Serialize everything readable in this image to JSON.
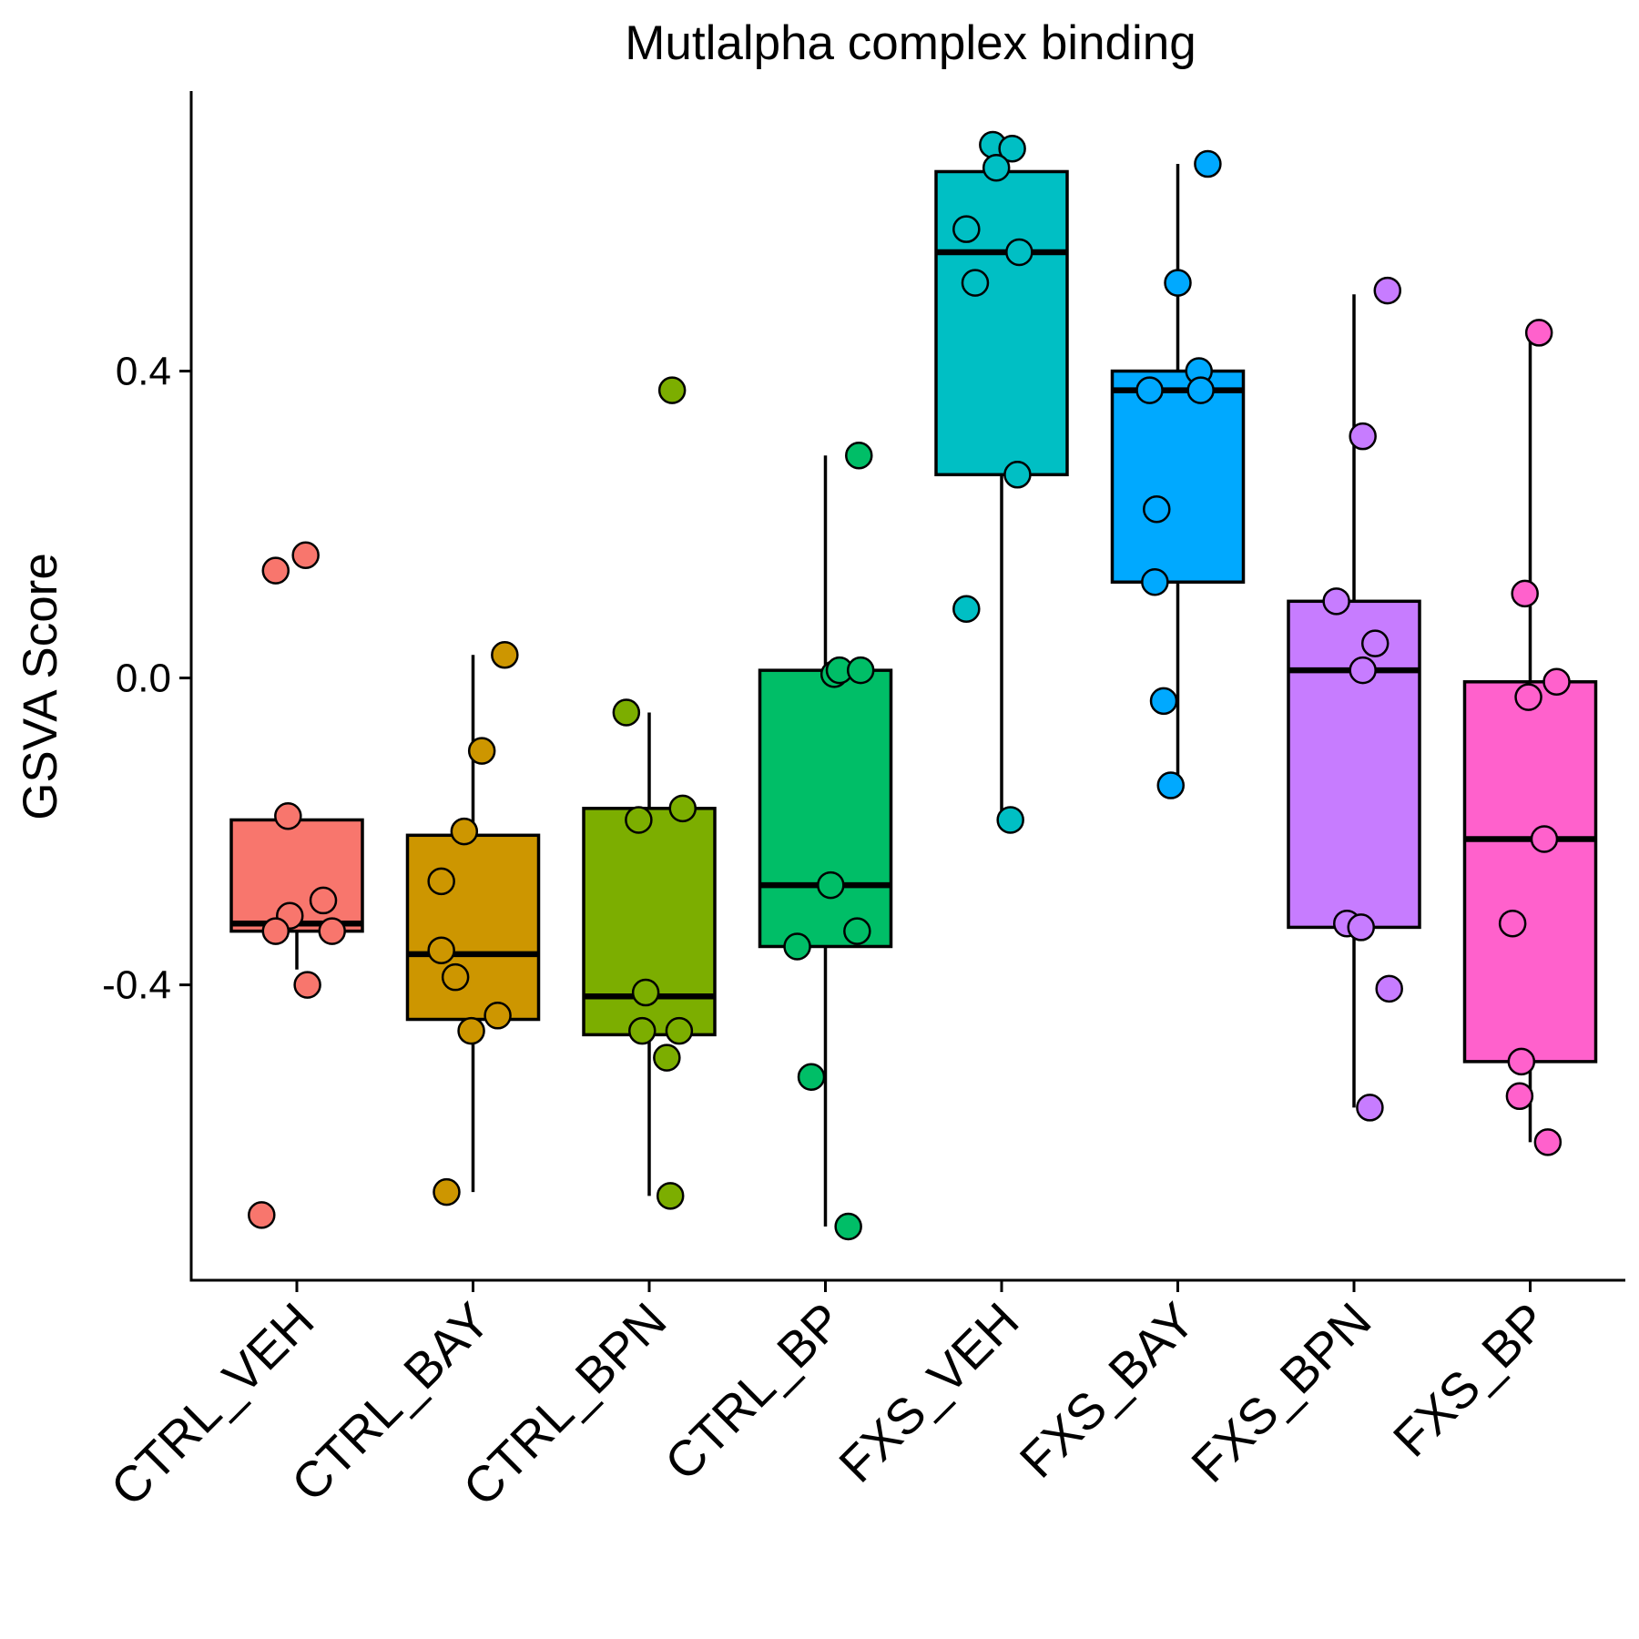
{
  "chart_data": {
    "type": "box",
    "title": "Mutlalpha complex binding",
    "xlabel": "",
    "ylabel": "GSVA Score",
    "ylim": [
      -0.785,
      0.765
    ],
    "yticks": [
      {
        "value": 0.4,
        "label": "0.4"
      },
      {
        "value": 0.0,
        "label": "0.0"
      },
      {
        "value": -0.4,
        "label": "-0.4"
      }
    ],
    "grid": false,
    "legend": "none",
    "categories": [
      "CTRL_VEH",
      "CTRL_BAY",
      "CTRL_BPN",
      "CTRL_BP",
      "FXS_VEH",
      "FXS_BAY",
      "FXS_BPN",
      "FXS_BP"
    ],
    "colors": [
      "#F8766D",
      "#CD9600",
      "#7CAE00",
      "#00BE67",
      "#00BFC4",
      "#00A9FF",
      "#C77CFF",
      "#FF61CC"
    ],
    "boxes": [
      {
        "whisker_low": -0.38,
        "q1": -0.33,
        "median": -0.32,
        "q3": -0.185,
        "whisker_high": -0.185
      },
      {
        "whisker_low": -0.67,
        "q1": -0.445,
        "median": -0.36,
        "q3": -0.205,
        "whisker_high": 0.03
      },
      {
        "whisker_low": -0.675,
        "q1": -0.465,
        "median": -0.415,
        "q3": -0.17,
        "whisker_high": -0.045
      },
      {
        "whisker_low": -0.715,
        "q1": -0.35,
        "median": -0.27,
        "q3": 0.01,
        "whisker_high": 0.29
      },
      {
        "whisker_low": -0.185,
        "q1": 0.265,
        "median": 0.555,
        "q3": 0.66,
        "whisker_high": 0.66
      },
      {
        "whisker_low": -0.13,
        "q1": 0.125,
        "median": 0.375,
        "q3": 0.4,
        "whisker_high": 0.67
      },
      {
        "whisker_low": -0.56,
        "q1": -0.325,
        "median": 0.01,
        "q3": 0.1,
        "whisker_high": 0.5
      },
      {
        "whisker_low": -0.605,
        "q1": -0.5,
        "median": -0.21,
        "q3": -0.005,
        "whisker_high": 0.44
      }
    ],
    "points": [
      [
        {
          "x": -0.2,
          "y": -0.7
        },
        {
          "x": -0.12,
          "y": 0.14
        },
        {
          "x": 0.05,
          "y": 0.16
        },
        {
          "x": -0.05,
          "y": -0.18
        },
        {
          "x": 0.15,
          "y": -0.29
        },
        {
          "x": -0.04,
          "y": -0.31
        },
        {
          "x": -0.12,
          "y": -0.33
        },
        {
          "x": 0.2,
          "y": -0.33
        },
        {
          "x": 0.06,
          "y": -0.4
        }
      ],
      [
        {
          "x": 0.18,
          "y": 0.03
        },
        {
          "x": 0.05,
          "y": -0.095
        },
        {
          "x": -0.05,
          "y": -0.2
        },
        {
          "x": -0.18,
          "y": -0.265
        },
        {
          "x": -0.18,
          "y": -0.355
        },
        {
          "x": -0.1,
          "y": -0.39
        },
        {
          "x": 0.14,
          "y": -0.44
        },
        {
          "x": -0.01,
          "y": -0.46
        },
        {
          "x": -0.15,
          "y": -0.67
        }
      ],
      [
        {
          "x": 0.13,
          "y": 0.375
        },
        {
          "x": -0.13,
          "y": -0.045
        },
        {
          "x": 0.19,
          "y": -0.17
        },
        {
          "x": -0.06,
          "y": -0.185
        },
        {
          "x": -0.02,
          "y": -0.41
        },
        {
          "x": -0.04,
          "y": -0.46
        },
        {
          "x": 0.17,
          "y": -0.46
        },
        {
          "x": 0.1,
          "y": -0.495
        },
        {
          "x": 0.12,
          "y": -0.675
        }
      ],
      [
        {
          "x": 0.19,
          "y": 0.29
        },
        {
          "x": 0.05,
          "y": 0.005
        },
        {
          "x": 0.08,
          "y": 0.01
        },
        {
          "x": 0.2,
          "y": 0.01
        },
        {
          "x": 0.03,
          "y": -0.27
        },
        {
          "x": 0.18,
          "y": -0.33
        },
        {
          "x": -0.16,
          "y": -0.35
        },
        {
          "x": -0.08,
          "y": -0.52
        },
        {
          "x": 0.13,
          "y": -0.715
        }
      ],
      [
        {
          "x": -0.05,
          "y": 0.695
        },
        {
          "x": 0.06,
          "y": 0.69
        },
        {
          "x": -0.03,
          "y": 0.665
        },
        {
          "x": -0.2,
          "y": 0.585
        },
        {
          "x": 0.1,
          "y": 0.555
        },
        {
          "x": -0.15,
          "y": 0.515
        },
        {
          "x": 0.09,
          "y": 0.265
        },
        {
          "x": -0.2,
          "y": 0.09
        },
        {
          "x": 0.05,
          "y": -0.185
        }
      ],
      [
        {
          "x": 0.17,
          "y": 0.67
        },
        {
          "x": 0.0,
          "y": 0.515
        },
        {
          "x": 0.12,
          "y": 0.4
        },
        {
          "x": 0.13,
          "y": 0.375
        },
        {
          "x": -0.16,
          "y": 0.375
        },
        {
          "x": -0.12,
          "y": 0.22
        },
        {
          "x": -0.13,
          "y": 0.125
        },
        {
          "x": -0.08,
          "y": -0.03
        },
        {
          "x": -0.04,
          "y": -0.14
        }
      ],
      [
        {
          "x": 0.19,
          "y": 0.505
        },
        {
          "x": 0.05,
          "y": 0.315
        },
        {
          "x": -0.1,
          "y": 0.1
        },
        {
          "x": 0.12,
          "y": 0.045
        },
        {
          "x": 0.05,
          "y": 0.01
        },
        {
          "x": -0.04,
          "y": -0.32
        },
        {
          "x": 0.04,
          "y": -0.325
        },
        {
          "x": 0.2,
          "y": -0.405
        },
        {
          "x": 0.09,
          "y": -0.56
        }
      ],
      [
        {
          "x": 0.05,
          "y": 0.45
        },
        {
          "x": -0.03,
          "y": 0.11
        },
        {
          "x": 0.15,
          "y": -0.005
        },
        {
          "x": -0.01,
          "y": -0.025
        },
        {
          "x": 0.08,
          "y": -0.21
        },
        {
          "x": -0.1,
          "y": -0.32
        },
        {
          "x": -0.05,
          "y": -0.5
        },
        {
          "x": -0.06,
          "y": -0.545
        },
        {
          "x": 0.1,
          "y": -0.605
        }
      ]
    ]
  }
}
